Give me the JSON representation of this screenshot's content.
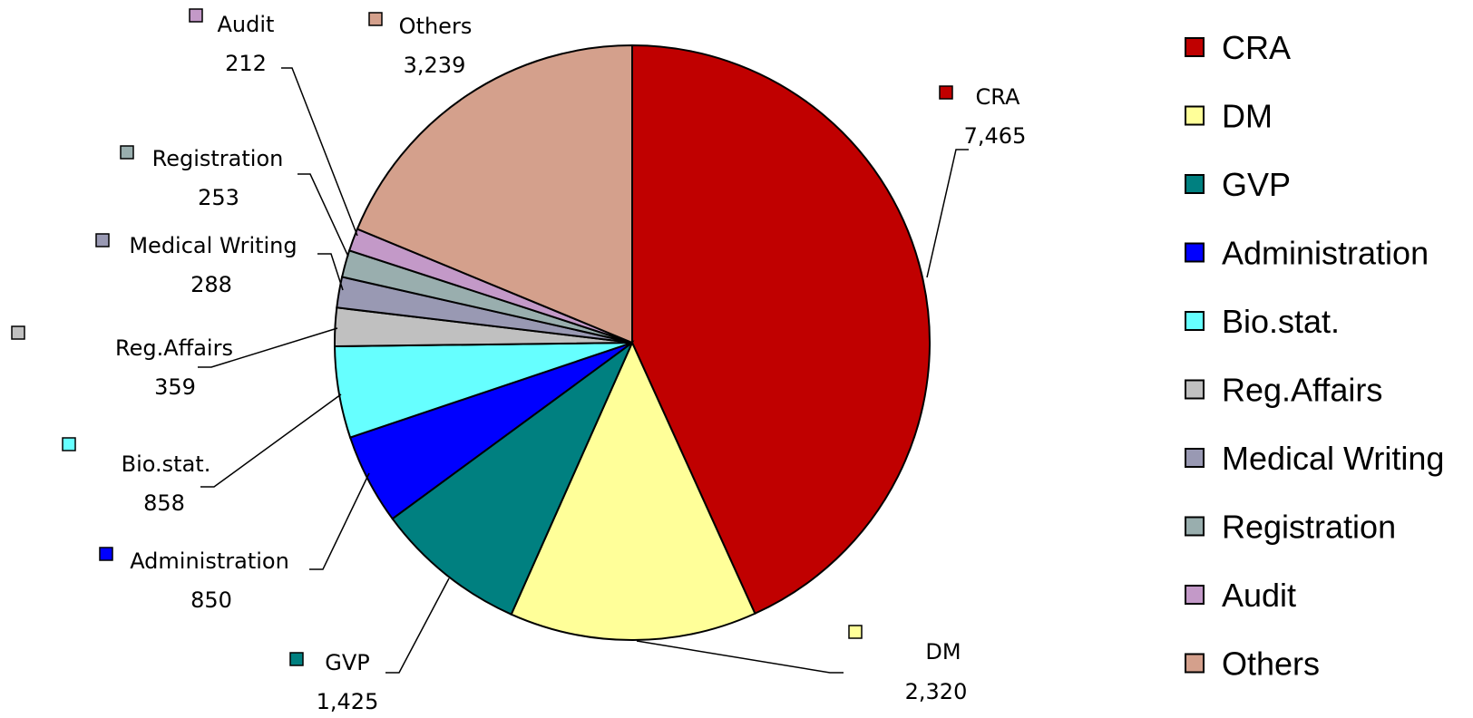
{
  "chart_data": {
    "type": "pie",
    "title": "",
    "legend_position": "right",
    "slices": [
      {
        "name": "CRA",
        "value": 7465,
        "value_label": "7,465",
        "color": "#C00000"
      },
      {
        "name": "DM",
        "value": 2320,
        "value_label": "2,320",
        "color": "#FFFF99"
      },
      {
        "name": "GVP",
        "value": 1425,
        "value_label": "1,425",
        "color": "#008080"
      },
      {
        "name": "Administration",
        "value": 850,
        "value_label": "850",
        "color": "#0000FF"
      },
      {
        "name": "Bio.stat.",
        "value": 858,
        "value_label": "858",
        "color": "#66FFFF"
      },
      {
        "name": "Reg.Affairs",
        "value": 359,
        "value_label": "359",
        "color": "#C0C0C0"
      },
      {
        "name": "Medical Writing",
        "value": 288,
        "value_label": "288",
        "color": "#9999B3"
      },
      {
        "name": "Registration",
        "value": 253,
        "value_label": "253",
        "color": "#99AEAE"
      },
      {
        "name": "Audit",
        "value": 212,
        "value_label": "212",
        "color": "#C399C8"
      },
      {
        "name": "Others",
        "value": 3239,
        "value_label": "3,239",
        "color": "#D4A08C"
      }
    ]
  }
}
